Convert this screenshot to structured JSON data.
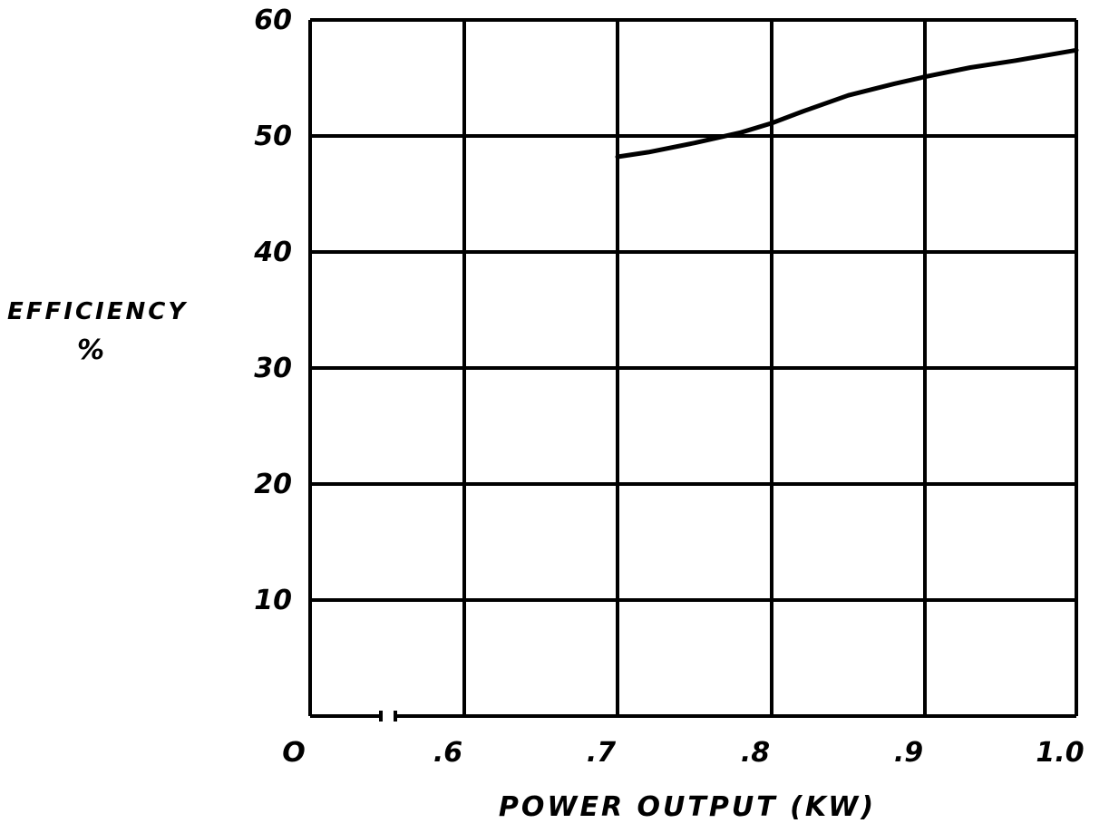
{
  "chart_data": {
    "type": "line",
    "title": "",
    "xlabel": "POWER OUTPUT (KW)",
    "ylabel": "EFFICIENCY",
    "ylabel_unit": "%",
    "x_ticks": [
      "O",
      ".6",
      ".7",
      ".8",
      ".9",
      "1.0"
    ],
    "x_tick_values": [
      0.5,
      0.6,
      0.7,
      0.8,
      0.9,
      1.0
    ],
    "y_ticks": [
      "10",
      "20",
      "30",
      "40",
      "50",
      "60"
    ],
    "y_tick_values": [
      10,
      20,
      30,
      40,
      50,
      60
    ],
    "xlim": [
      0.5,
      1.0
    ],
    "ylim": [
      0,
      60
    ],
    "x_axis_break": true,
    "grid": true,
    "series": [
      {
        "x": [
          0.7,
          0.72,
          0.75,
          0.78,
          0.8,
          0.82,
          0.85,
          0.88,
          0.9,
          0.93,
          0.96,
          1.0
        ],
        "y": [
          48.2,
          48.6,
          49.4,
          50.3,
          51.1,
          52.1,
          53.5,
          54.5,
          55.1,
          55.9,
          56.5,
          57.4
        ]
      }
    ],
    "colors": {
      "line": "#000000",
      "grid": "#000000",
      "background": "#ffffff"
    }
  }
}
